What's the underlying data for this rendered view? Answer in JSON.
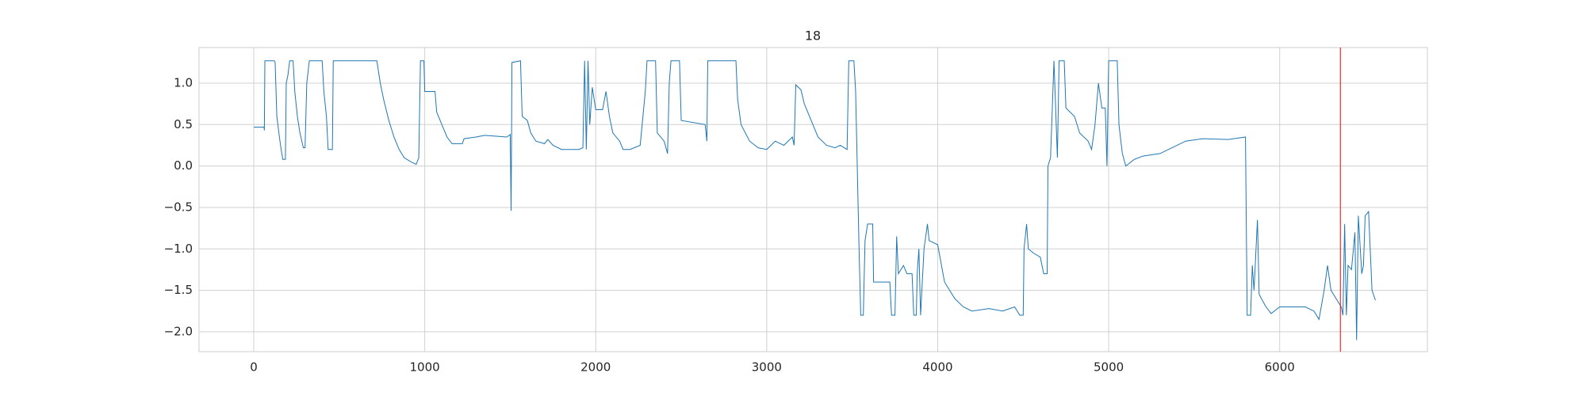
{
  "chart_data": {
    "type": "line",
    "title": "18",
    "color": "#1f77b4",
    "grid": true,
    "xlim": [
      -320,
      6864
    ],
    "ylim": [
      -2.24,
      1.43
    ],
    "xticks": [
      0,
      1000,
      2000,
      3000,
      4000,
      5000,
      6000
    ],
    "yticks": [
      {
        "value": -2.0,
        "label": "−2.0"
      },
      {
        "value": -1.5,
        "label": "−1.5"
      },
      {
        "value": -1.0,
        "label": "−1.0"
      },
      {
        "value": -0.5,
        "label": "−0.5"
      },
      {
        "value": 0.0,
        "label": "0.0"
      },
      {
        "value": 0.5,
        "label": "0.5"
      },
      {
        "value": 1.0,
        "label": "1.0"
      }
    ],
    "vline": {
      "x": 6355,
      "color": "#ff0000"
    },
    "x": [
      0,
      60,
      62,
      65,
      120,
      125,
      135,
      150,
      160,
      170,
      185,
      190,
      200,
      210,
      230,
      240,
      255,
      270,
      290,
      300,
      310,
      325,
      400,
      410,
      425,
      435,
      460,
      465,
      720,
      740,
      760,
      790,
      820,
      850,
      880,
      920,
      950,
      965,
      975,
      995,
      1000,
      1060,
      1070,
      1100,
      1130,
      1160,
      1220,
      1230,
      1300,
      1350,
      1480,
      1500,
      1505,
      1508,
      1510,
      1560,
      1570,
      1600,
      1620,
      1650,
      1700,
      1720,
      1750,
      1800,
      1900,
      1925,
      1935,
      1945,
      1955,
      1965,
      1980,
      2000,
      2040,
      2060,
      2080,
      2100,
      2140,
      2160,
      2200,
      2260,
      2290,
      2300,
      2350,
      2360,
      2400,
      2420,
      2430,
      2440,
      2490,
      2500,
      2640,
      2650,
      2655,
      2820,
      2830,
      2850,
      2900,
      2950,
      3000,
      3050,
      3100,
      3150,
      3160,
      3170,
      3200,
      3220,
      3250,
      3280,
      3300,
      3350,
      3400,
      3430,
      3470,
      3480,
      3510,
      3520,
      3540,
      3550,
      3565,
      3575,
      3590,
      3620,
      3625,
      3720,
      3730,
      3750,
      3760,
      3770,
      3800,
      3820,
      3850,
      3860,
      3875,
      3880,
      3890,
      3900,
      3920,
      3940,
      3950,
      4000,
      4040,
      4100,
      4150,
      4200,
      4300,
      4380,
      4450,
      4480,
      4500,
      4505,
      4520,
      4530,
      4560,
      4600,
      4620,
      4640,
      4645,
      4660,
      4680,
      4700,
      4710,
      4740,
      4750,
      4800,
      4830,
      4880,
      4900,
      4920,
      4940,
      4960,
      4980,
      4990,
      5000,
      5050,
      5060,
      5080,
      5100,
      5150,
      5200,
      5300,
      5400,
      5450,
      5550,
      5700,
      5800,
      5810,
      5830,
      5840,
      5850,
      5870,
      5880,
      5920,
      5950,
      6000,
      6150,
      6200,
      6230,
      6260,
      6280,
      6300,
      6330,
      6360,
      6370,
      6380,
      6390,
      6400,
      6420,
      6440,
      6450,
      6460,
      6480,
      6490,
      6500,
      6520,
      6540,
      6560
    ],
    "values": [
      0.47,
      0.47,
      0.43,
      1.27,
      1.27,
      1.25,
      0.6,
      0.35,
      0.2,
      0.08,
      0.08,
      1.0,
      1.1,
      1.27,
      1.27,
      0.9,
      0.6,
      0.4,
      0.22,
      0.22,
      1.0,
      1.27,
      1.27,
      0.9,
      0.6,
      0.2,
      0.2,
      1.27,
      1.27,
      1.0,
      0.8,
      0.55,
      0.35,
      0.2,
      0.1,
      0.05,
      0.02,
      0.1,
      1.27,
      1.27,
      0.9,
      0.9,
      0.65,
      0.5,
      0.35,
      0.27,
      0.27,
      0.33,
      0.35,
      0.37,
      0.35,
      0.38,
      -0.54,
      0.4,
      1.25,
      1.27,
      0.6,
      0.55,
      0.4,
      0.3,
      0.27,
      0.32,
      0.25,
      0.2,
      0.2,
      0.22,
      1.27,
      0.2,
      1.27,
      0.5,
      0.95,
      0.68,
      0.68,
      0.9,
      0.6,
      0.4,
      0.3,
      0.2,
      0.2,
      0.25,
      0.9,
      1.27,
      1.27,
      0.4,
      0.3,
      0.15,
      1.0,
      1.27,
      1.27,
      0.55,
      0.5,
      0.3,
      1.27,
      1.27,
      0.8,
      0.5,
      0.3,
      0.22,
      0.2,
      0.3,
      0.25,
      0.35,
      0.25,
      0.98,
      0.92,
      0.75,
      0.6,
      0.45,
      0.35,
      0.25,
      0.22,
      0.25,
      0.2,
      1.27,
      1.27,
      0.9,
      -1.0,
      -1.8,
      -1.8,
      -0.9,
      -0.7,
      -0.7,
      -1.4,
      -1.4,
      -1.8,
      -1.8,
      -0.85,
      -1.3,
      -1.2,
      -1.3,
      -1.3,
      -1.8,
      -1.8,
      -1.3,
      -1.0,
      -1.8,
      -1.0,
      -0.7,
      -0.9,
      -0.95,
      -1.4,
      -1.6,
      -1.7,
      -1.75,
      -1.72,
      -1.75,
      -1.7,
      -1.8,
      -1.8,
      -1.0,
      -0.7,
      -1.0,
      -1.05,
      -1.1,
      -1.3,
      -1.3,
      0.0,
      0.1,
      1.27,
      0.1,
      1.27,
      1.27,
      0.7,
      0.6,
      0.4,
      0.3,
      0.2,
      0.5,
      1.0,
      0.7,
      0.7,
      0.0,
      1.27,
      1.27,
      0.5,
      0.15,
      0.0,
      0.08,
      0.12,
      0.15,
      0.25,
      0.3,
      0.33,
      0.32,
      0.35,
      -1.8,
      -1.8,
      -1.2,
      -1.5,
      -0.65,
      -1.55,
      -1.7,
      -1.78,
      -1.7,
      -1.7,
      -1.75,
      -1.85,
      -1.5,
      -1.2,
      -1.5,
      -1.6,
      -1.7,
      -1.8,
      -0.7,
      -1.8,
      -1.2,
      -1.25,
      -0.8,
      -2.1,
      -0.6,
      -1.3,
      -1.2,
      -0.6,
      -0.55,
      -1.5,
      -1.62
    ]
  }
}
